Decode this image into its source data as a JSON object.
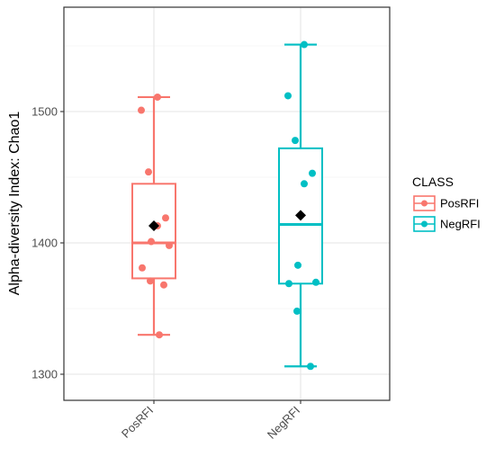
{
  "chart_data": {
    "type": "boxplot",
    "ylabel": "Alpha-diversity Index: Chao1",
    "xlabel": "",
    "categories": [
      "PosRFI",
      "NegRFI"
    ],
    "yticks": [
      1300,
      1400,
      1500
    ],
    "ylim": [
      1290,
      1565
    ],
    "grid": true,
    "legend": {
      "title": "CLASS",
      "position": "right",
      "entries": [
        "PosRFI",
        "NegRFI"
      ]
    },
    "colors": [
      "#F8766D",
      "#00BFC4"
    ],
    "series": [
      {
        "name": "PosRFI",
        "whisker_low": 1330,
        "q1": 1373,
        "median": 1400,
        "q3": 1445,
        "whisker_high": 1511,
        "mean": 1413,
        "points": [
          1511,
          1501,
          1454,
          1419,
          1413,
          1401,
          1398,
          1381,
          1371,
          1368,
          1330
        ]
      },
      {
        "name": "NegRFI",
        "whisker_low": 1306,
        "q1": 1369,
        "median": 1414,
        "q3": 1472,
        "whisker_high": 1551,
        "mean": 1421,
        "points": [
          1551,
          1512,
          1478,
          1453,
          1445,
          1383,
          1370,
          1369,
          1348,
          1306
        ]
      }
    ]
  }
}
